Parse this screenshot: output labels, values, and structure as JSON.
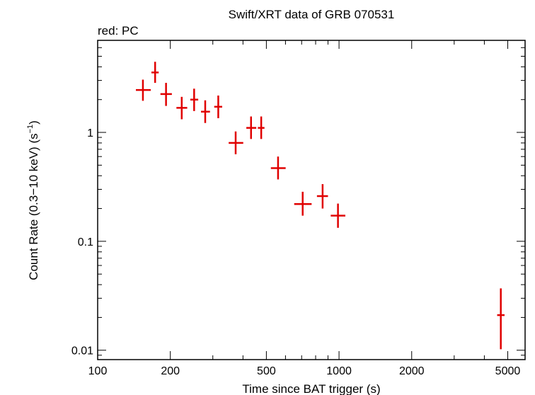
{
  "chart_data": {
    "type": "scatter",
    "title": "Swift/XRT data of GRB 070531",
    "subtitle": "red: PC",
    "xlabel": "Time since BAT trigger (s)",
    "ylabel": "Count Rate (0.3−10 keV) (s",
    "ylabel_sup": "−1",
    "ylabel_end": ")",
    "x_scale": "log",
    "y_scale": "log",
    "xlim": [
      100,
      5900
    ],
    "ylim": [
      0.0082,
      7.0
    ],
    "x_ticks": [
      {
        "value": 100,
        "label": "100"
      },
      {
        "value": 200,
        "label": "200"
      },
      {
        "value": 500,
        "label": "500"
      },
      {
        "value": 1000,
        "label": "1000"
      },
      {
        "value": 2000,
        "label": "2000"
      },
      {
        "value": 5000,
        "label": "5000"
      }
    ],
    "y_ticks": [
      {
        "value": 0.01,
        "label": "0.01"
      },
      {
        "value": 0.1,
        "label": "0.1"
      },
      {
        "value": 1,
        "label": "1"
      }
    ],
    "grid": false,
    "series": [
      {
        "color": "#e00000",
        "points": [
          {
            "x": 154,
            "xlo": 144,
            "xhi": 166,
            "y": 2.45,
            "ylo": 1.95,
            "yhi": 3.05
          },
          {
            "x": 173,
            "xlo": 167,
            "xhi": 179,
            "y": 3.55,
            "ylo": 2.85,
            "yhi": 4.45
          },
          {
            "x": 192,
            "xlo": 182,
            "xhi": 203,
            "y": 2.25,
            "ylo": 1.75,
            "yhi": 2.85
          },
          {
            "x": 223,
            "xlo": 212,
            "xhi": 235,
            "y": 1.68,
            "ylo": 1.32,
            "yhi": 2.12
          },
          {
            "x": 251,
            "xlo": 242,
            "xhi": 261,
            "y": 2.0,
            "ylo": 1.57,
            "yhi": 2.52
          },
          {
            "x": 279,
            "xlo": 268,
            "xhi": 292,
            "y": 1.55,
            "ylo": 1.22,
            "yhi": 1.97
          },
          {
            "x": 316,
            "xlo": 304,
            "xhi": 328,
            "y": 1.72,
            "ylo": 1.35,
            "yhi": 2.18
          },
          {
            "x": 373,
            "xlo": 349,
            "xhi": 401,
            "y": 0.8,
            "ylo": 0.63,
            "yhi": 1.02
          },
          {
            "x": 432,
            "xlo": 413,
            "xhi": 454,
            "y": 1.1,
            "ylo": 0.87,
            "yhi": 1.4
          },
          {
            "x": 476,
            "xlo": 461,
            "xhi": 491,
            "y": 1.1,
            "ylo": 0.87,
            "yhi": 1.4
          },
          {
            "x": 559,
            "xlo": 522,
            "xhi": 601,
            "y": 0.47,
            "ylo": 0.37,
            "yhi": 0.6
          },
          {
            "x": 707,
            "xlo": 652,
            "xhi": 770,
            "y": 0.22,
            "ylo": 0.172,
            "yhi": 0.285
          },
          {
            "x": 855,
            "xlo": 810,
            "xhi": 900,
            "y": 0.26,
            "ylo": 0.2,
            "yhi": 0.335
          },
          {
            "x": 990,
            "xlo": 924,
            "xhi": 1062,
            "y": 0.172,
            "ylo": 0.133,
            "yhi": 0.222
          },
          {
            "x": 4680,
            "xlo": 4520,
            "xhi": 4850,
            "y": 0.021,
            "ylo": 0.0102,
            "yhi": 0.037
          }
        ]
      }
    ]
  }
}
